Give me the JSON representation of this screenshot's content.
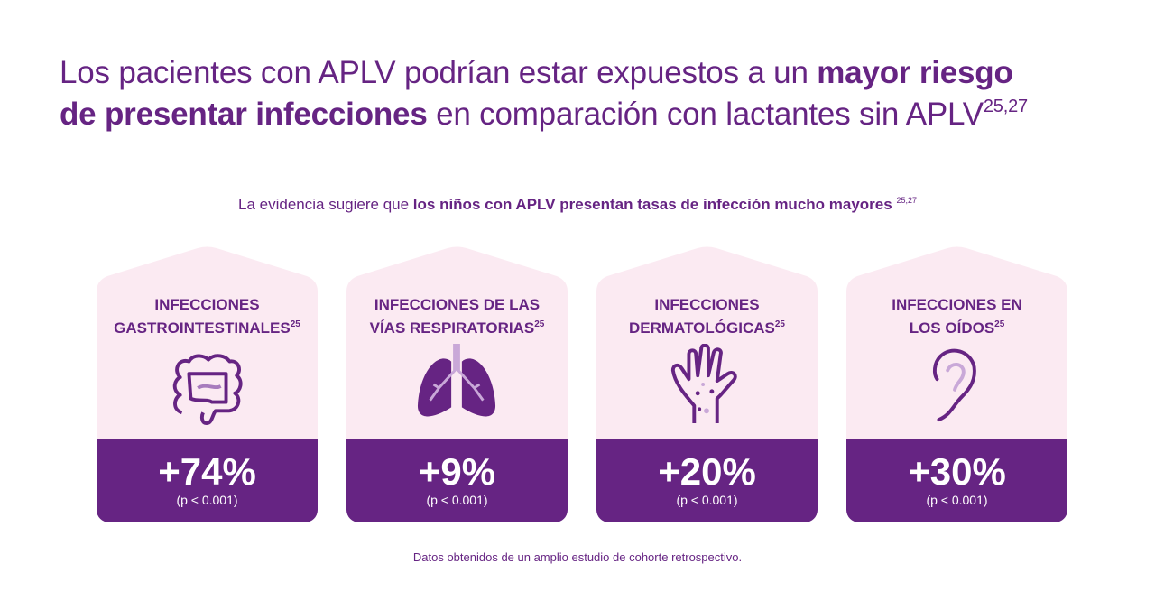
{
  "title": {
    "part1": "Los pacientes con APLV podrían estar expuestos a un ",
    "bold1": "mayor riesgo",
    "bold2": "de presentar infecciones",
    "part2": " en comparación con lactantes sin APLV",
    "refs": "25,27"
  },
  "subtitle": {
    "part1": "La evidencia sugiere que ",
    "bold": "los niños con APLV presentan tasas de infección mucho mayores",
    "refs": "25,27"
  },
  "cards": [
    {
      "line1": "INFECCIONES",
      "line2": "GASTROINTESTINALES",
      "ref": "25",
      "value": "+74%",
      "p": "(p < 0.001)",
      "icon": "intestine-icon"
    },
    {
      "line1": "INFECCIONES  DE LAS",
      "line2": "VÍAS RESPIRATORIAS",
      "ref": "25",
      "value": "+9%",
      "p": "(p < 0.001)",
      "icon": "lungs-icon"
    },
    {
      "line1": "INFECCIONES",
      "line2": "DERMATOLÓGICAS",
      "ref": "25",
      "value": "+20%",
      "p": "(p < 0.001)",
      "icon": "hand-rash-icon"
    },
    {
      "line1": "INFECCIONES EN",
      "line2": "LOS OÍDOS",
      "ref": "25",
      "value": "+30%",
      "p": "(p < 0.001)",
      "icon": "ear-icon"
    }
  ],
  "footer": "Datos obtenidos de un amplio estudio de cohorte retrospectivo.",
  "colors": {
    "purple": "#662483",
    "pink": "#fbeaf2",
    "lilac": "#c9a8d8"
  }
}
